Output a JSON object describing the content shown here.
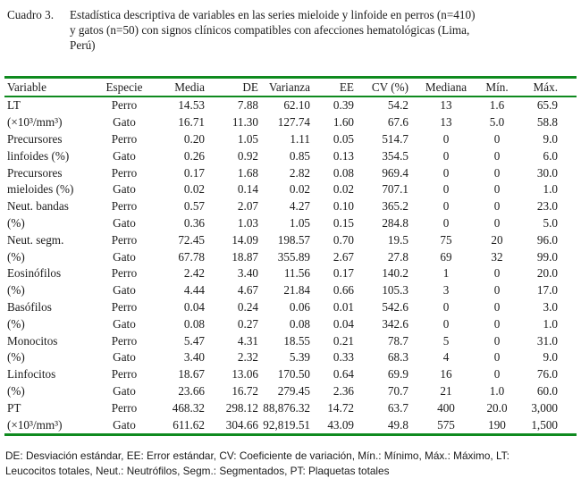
{
  "colors": {
    "rule_green": "#0f8a1f"
  },
  "title": {
    "label": "Cuadro 3.",
    "lines": [
      "Estadística descriptiva de variables en las series mieloide y linfoide en perros (n=410)",
      "y gatos (n=50) con signos clínicos compatibles con afecciones hematológicas (Lima,",
      "Perú)"
    ]
  },
  "table": {
    "columns": [
      "Variable",
      "Especie",
      "Media",
      "DE",
      "Varianza",
      "EE",
      "CV (%)",
      "Mediana",
      "Mín.",
      "Máx."
    ],
    "groups": [
      {
        "name": "LT",
        "unit": "(×10³/mm³)",
        "rows": [
          {
            "especie": "Perro",
            "media": "14.53",
            "de": "7.88",
            "varianza": "62.10",
            "ee": "0.39",
            "cv": "54.2",
            "mediana": "13",
            "min": "1.6",
            "max": "65.9"
          },
          {
            "especie": "Gato",
            "media": "16.71",
            "de": "11.30",
            "varianza": "127.74",
            "ee": "1.60",
            "cv": "67.6",
            "mediana": "13",
            "min": "5.0",
            "max": "58.8"
          }
        ]
      },
      {
        "name": "Precursores",
        "unit": "linfoides (%)",
        "rows": [
          {
            "especie": "Perro",
            "media": "0.20",
            "de": "1.05",
            "varianza": "1.11",
            "ee": "0.05",
            "cv": "514.7",
            "mediana": "0",
            "min": "0",
            "max": "9.0"
          },
          {
            "especie": "Gato",
            "media": "0.26",
            "de": "0.92",
            "varianza": "0.85",
            "ee": "0.13",
            "cv": "354.5",
            "mediana": "0",
            "min": "0",
            "max": "6.0"
          }
        ]
      },
      {
        "name": "Precursores",
        "unit": "mieloides (%)",
        "rows": [
          {
            "especie": "Perro",
            "media": "0.17",
            "de": "1.68",
            "varianza": "2.82",
            "ee": "0.08",
            "cv": "969.4",
            "mediana": "0",
            "min": "0",
            "max": "30.0"
          },
          {
            "especie": "Gato",
            "media": "0.02",
            "de": "0.14",
            "varianza": "0.02",
            "ee": "0.02",
            "cv": "707.1",
            "mediana": "0",
            "min": "0",
            "max": "1.0"
          }
        ]
      },
      {
        "name": "Neut. bandas",
        "unit": "(%)",
        "rows": [
          {
            "especie": "Perro",
            "media": "0.57",
            "de": "2.07",
            "varianza": "4.27",
            "ee": "0.10",
            "cv": "365.2",
            "mediana": "0",
            "min": "0",
            "max": "23.0"
          },
          {
            "especie": "Gato",
            "media": "0.36",
            "de": "1.03",
            "varianza": "1.05",
            "ee": "0.15",
            "cv": "284.8",
            "mediana": "0",
            "min": "0",
            "max": "5.0"
          }
        ]
      },
      {
        "name": "Neut. segm.",
        "unit": "(%)",
        "rows": [
          {
            "especie": "Perro",
            "media": "72.45",
            "de": "14.09",
            "varianza": "198.57",
            "ee": "0.70",
            "cv": "19.5",
            "mediana": "75",
            "min": "20",
            "max": "96.0"
          },
          {
            "especie": "Gato",
            "media": "67.78",
            "de": "18.87",
            "varianza": "355.89",
            "ee": "2.67",
            "cv": "27.8",
            "mediana": "69",
            "min": "32",
            "max": "99.0"
          }
        ]
      },
      {
        "name": "Eosinófilos",
        "unit": "(%)",
        "rows": [
          {
            "especie": "Perro",
            "media": "2.42",
            "de": "3.40",
            "varianza": "11.56",
            "ee": "0.17",
            "cv": "140.2",
            "mediana": "1",
            "min": "0",
            "max": "20.0"
          },
          {
            "especie": "Gato",
            "media": "4.44",
            "de": "4.67",
            "varianza": "21.84",
            "ee": "0.66",
            "cv": "105.3",
            "mediana": "3",
            "min": "0",
            "max": "17.0"
          }
        ]
      },
      {
        "name": "Basófilos",
        "unit": "(%)",
        "rows": [
          {
            "especie": "Perro",
            "media": "0.04",
            "de": "0.24",
            "varianza": "0.06",
            "ee": "0.01",
            "cv": "542.6",
            "mediana": "0",
            "min": "0",
            "max": "3.0"
          },
          {
            "especie": "Gato",
            "media": "0.08",
            "de": "0.27",
            "varianza": "0.08",
            "ee": "0.04",
            "cv": "342.6",
            "mediana": "0",
            "min": "0",
            "max": "1.0"
          }
        ]
      },
      {
        "name": "Monocitos",
        "unit": "(%)",
        "rows": [
          {
            "especie": "Perro",
            "media": "5.47",
            "de": "4.31",
            "varianza": "18.55",
            "ee": "0.21",
            "cv": "78.7",
            "mediana": "5",
            "min": "0",
            "max": "31.0"
          },
          {
            "especie": "Gato",
            "media": "3.40",
            "de": "2.32",
            "varianza": "5.39",
            "ee": "0.33",
            "cv": "68.3",
            "mediana": "4",
            "min": "0",
            "max": "9.0"
          }
        ]
      },
      {
        "name": "Linfocitos",
        "unit": "(%)",
        "rows": [
          {
            "especie": "Perro",
            "media": "18.67",
            "de": "13.06",
            "varianza": "170.50",
            "ee": "0.64",
            "cv": "69.9",
            "mediana": "16",
            "min": "0",
            "max": "76.0"
          },
          {
            "especie": "Gato",
            "media": "23.66",
            "de": "16.72",
            "varianza": "279.45",
            "ee": "2.36",
            "cv": "70.7",
            "mediana": "21",
            "min": "1.0",
            "max": "60.0"
          }
        ]
      },
      {
        "name": "PT",
        "unit": "(×10³/mm³)",
        "rows": [
          {
            "especie": "Perro",
            "media": "468.32",
            "de": "298.12",
            "varianza": "88,876.32",
            "ee": "14.72",
            "cv": "63.7",
            "mediana": "400",
            "min": "20.0",
            "max": "3,000"
          },
          {
            "especie": "Gato",
            "media": "611.62",
            "de": "304.66",
            "varianza": "92,819.51",
            "ee": "43.09",
            "cv": "49.8",
            "mediana": "575",
            "min": "190",
            "max": "1,500"
          }
        ]
      }
    ]
  },
  "footnote": {
    "lines": [
      "DE: Desviación estándar, EE: Error estándar, CV: Coeficiente de variación, Mín.: Mínimo, Máx.: Máximo, LT:",
      "Leucocitos totales, Neut.: Neutrófilos, Segm.: Segmentados, PT: Plaquetas totales"
    ]
  }
}
